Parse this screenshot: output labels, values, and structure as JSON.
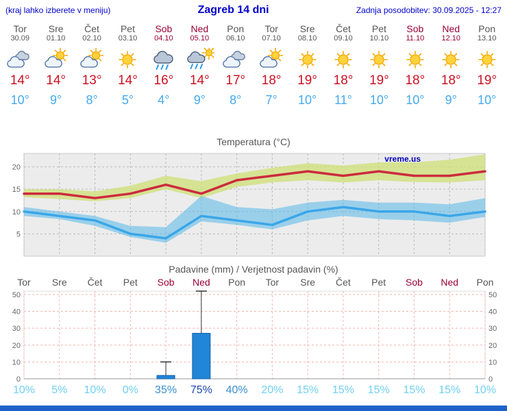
{
  "header": {
    "left_note": "(kraj lahko izberete v meniju)",
    "title": "Zagreb 14 dni",
    "updated": "Zadnja posodobitev: 30.09.2025 - 12:27"
  },
  "watermark": "vreme.us",
  "colors": {
    "header_blue": "#0000cc",
    "weekday": "#555555",
    "weekend": "#990033",
    "tmax_red": "#cc1122",
    "tmin_blue": "#44aaee",
    "footer_blue": "#1e62c8",
    "prob_low": "#6fd0f0",
    "prob_mid": "#3a8fd0",
    "prob_high": "#1c47b0"
  },
  "days": [
    {
      "name": "Tor",
      "date": "30.09",
      "weekend": false,
      "icon": "cloudy",
      "tmax": "14°",
      "tmin": "10°",
      "prob": "10%",
      "prob_level": "low"
    },
    {
      "name": "Sre",
      "date": "01.10",
      "weekend": false,
      "icon": "partly-cloudy",
      "tmax": "14°",
      "tmin": "9°",
      "prob": "5%",
      "prob_level": "low"
    },
    {
      "name": "Čet",
      "date": "02.10",
      "weekend": false,
      "icon": "partly-cloudy",
      "tmax": "13°",
      "tmin": "8°",
      "prob": "10%",
      "prob_level": "low"
    },
    {
      "name": "Pet",
      "date": "03.10",
      "weekend": false,
      "icon": "sunny",
      "tmax": "14°",
      "tmin": "5°",
      "prob": "0%",
      "prob_level": "low"
    },
    {
      "name": "Sob",
      "date": "04.10",
      "weekend": true,
      "icon": "rain",
      "tmax": "16°",
      "tmin": "4°",
      "prob": "35%",
      "prob_level": "mid"
    },
    {
      "name": "Ned",
      "date": "05.10",
      "weekend": true,
      "icon": "rain-sun",
      "tmax": "14°",
      "tmin": "9°",
      "prob": "75%",
      "prob_level": "high"
    },
    {
      "name": "Pon",
      "date": "06.10",
      "weekend": false,
      "icon": "cloudy",
      "tmax": "17°",
      "tmin": "8°",
      "prob": "40%",
      "prob_level": "mid"
    },
    {
      "name": "Tor",
      "date": "07.10",
      "weekend": false,
      "icon": "partly-cloudy",
      "tmax": "18°",
      "tmin": "7°",
      "prob": "20%",
      "prob_level": "low"
    },
    {
      "name": "Sre",
      "date": "08.10",
      "weekend": false,
      "icon": "sunny",
      "tmax": "19°",
      "tmin": "10°",
      "prob": "15%",
      "prob_level": "low"
    },
    {
      "name": "Čet",
      "date": "09.10",
      "weekend": false,
      "icon": "sunny",
      "tmax": "18°",
      "tmin": "11°",
      "prob": "15%",
      "prob_level": "low"
    },
    {
      "name": "Pet",
      "date": "10.10",
      "weekend": false,
      "icon": "sunny",
      "tmax": "19°",
      "tmin": "10°",
      "prob": "15%",
      "prob_level": "low"
    },
    {
      "name": "Sob",
      "date": "11.10",
      "weekend": true,
      "icon": "sunny",
      "tmax": "18°",
      "tmin": "10°",
      "prob": "15%",
      "prob_level": "low"
    },
    {
      "name": "Ned",
      "date": "12.10",
      "weekend": true,
      "icon": "sunny",
      "tmax": "18°",
      "tmin": "9°",
      "prob": "15%",
      "prob_level": "low"
    },
    {
      "name": "Pon",
      "date": "13.10",
      "weekend": false,
      "icon": "sunny",
      "tmax": "19°",
      "tmin": "10°",
      "prob": "10%",
      "prob_level": "low"
    }
  ],
  "chart_data": [
    {
      "type": "line",
      "title": "Temperatura (°C)",
      "categories": [
        "Tor",
        "Sre",
        "Čet",
        "Pet",
        "Sob",
        "Ned",
        "Pon",
        "Tor",
        "Sre",
        "Čet",
        "Pet",
        "Sob",
        "Ned",
        "Pon"
      ],
      "ylim": [
        0,
        23
      ],
      "yticks": [
        5,
        10,
        15,
        20
      ],
      "grid": true,
      "series": [
        {
          "name": "max-temperature",
          "color": "#cc2b3d",
          "values": [
            14,
            14,
            13,
            14,
            16,
            14,
            17,
            18,
            19,
            18,
            19,
            18,
            18,
            19
          ]
        },
        {
          "name": "min-temperature",
          "color": "#3aa6e8",
          "values": [
            10,
            9,
            8,
            5,
            4,
            9,
            8,
            7,
            10,
            11,
            10,
            10,
            9,
            10
          ]
        }
      ],
      "bands": [
        {
          "name": "max-range",
          "color": "#cfe076",
          "opacity": 0.75,
          "upper": [
            15,
            15,
            14.5,
            15.8,
            18,
            16.8,
            18.5,
            19.8,
            20.8,
            20.3,
            21,
            21,
            21.6,
            22.8
          ],
          "lower": [
            13.2,
            12.8,
            12.3,
            13,
            15,
            13,
            15.5,
            16.5,
            17,
            16.5,
            17,
            16.6,
            16.5,
            17
          ]
        },
        {
          "name": "min-range",
          "color": "#57b8ea",
          "opacity": 0.55,
          "upper": [
            11,
            10,
            9,
            6.8,
            6.5,
            13.5,
            11,
            10.5,
            12,
            12.6,
            12,
            12,
            11.6,
            13
          ],
          "lower": [
            9,
            8.3,
            6.8,
            4.3,
            3,
            7.8,
            7,
            6,
            8,
            9,
            8.3,
            8,
            7.5,
            8.8
          ]
        }
      ]
    },
    {
      "type": "bar",
      "title": "Padavine (mm) / Verjetnost padavin (%)",
      "categories": [
        "Tor",
        "Sre",
        "Čet",
        "Pet",
        "Sob",
        "Ned",
        "Pon",
        "Tor",
        "Sre",
        "Čet",
        "Pet",
        "Sob",
        "Ned",
        "Pon"
      ],
      "ylim": [
        0,
        52
      ],
      "yticks": [
        0,
        10,
        20,
        30,
        40,
        50
      ],
      "grid": true,
      "bar_color": "#2185d8",
      "bar_border": "#125fa6",
      "values": [
        0,
        0,
        0,
        0,
        2,
        27,
        0,
        0,
        0,
        0,
        0,
        0,
        0,
        0
      ],
      "whisker_max": [
        0,
        0,
        0,
        0,
        10,
        52,
        0,
        0,
        0,
        0,
        0,
        0,
        0,
        0
      ],
      "probabilities_pct": [
        10,
        5,
        10,
        0,
        35,
        75,
        40,
        20,
        15,
        15,
        15,
        15,
        15,
        10
      ]
    }
  ]
}
